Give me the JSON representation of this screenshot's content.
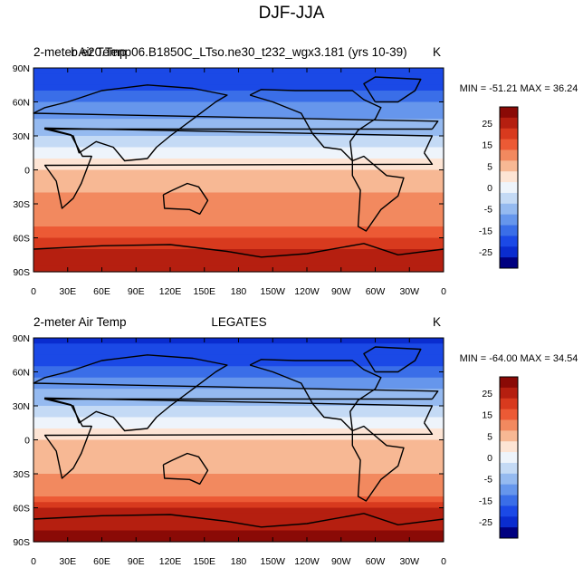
{
  "page_title": "DJF-JJA",
  "chart_data": [
    {
      "type": "heatmap",
      "left_title": "2-meter Air Temp",
      "center_title": "b.e20.Tenp06.B1850C_LTso.ne30_t232_wgx3.181 (yrs 10-39)",
      "units": "K",
      "stats_text": "MIN = -51.21 MAX =  36.24",
      "min": -51.21,
      "max": 36.24,
      "x_ticks": [
        "0",
        "30E",
        "60E",
        "90E",
        "120E",
        "150E",
        "180",
        "150W",
        "120W",
        "90W",
        "60W",
        "30W",
        "0"
      ],
      "y_ticks": [
        "90N",
        "60N",
        "30N",
        "0",
        "30S",
        "60S",
        "90S"
      ],
      "colorbar_labels": [
        "25",
        "15",
        "5",
        "0",
        "-5",
        "-15",
        "-25"
      ],
      "colorbar_levels": [
        -30,
        -25,
        -20,
        -15,
        -10,
        -5,
        -2,
        0,
        2,
        5,
        10,
        15,
        20,
        25,
        30
      ],
      "colorbar_colors": [
        "#000080",
        "#0a2ccf",
        "#1b49e6",
        "#3a6ee8",
        "#6696ec",
        "#95baf0",
        "#c4daf5",
        "#eef4fb",
        "#fde4d4",
        "#f7b894",
        "#f2895f",
        "#ec5a35",
        "#d83a1e",
        "#b51f10",
        "#8a0a06"
      ],
      "zonal_profile": [
        {
          "lat": 90,
          "anom": -24
        },
        {
          "lat": 75,
          "anom": -22
        },
        {
          "lat": 60,
          "anom": -16
        },
        {
          "lat": 45,
          "anom": -10
        },
        {
          "lat": 30,
          "anom": -5
        },
        {
          "lat": 15,
          "anom": -1
        },
        {
          "lat": 0,
          "anom": 2
        },
        {
          "lat": -15,
          "anom": 4
        },
        {
          "lat": -30,
          "anom": 6
        },
        {
          "lat": -45,
          "anom": 8
        },
        {
          "lat": -60,
          "anom": 14
        },
        {
          "lat": -75,
          "anom": 22
        },
        {
          "lat": -90,
          "anom": 24
        }
      ]
    },
    {
      "type": "heatmap",
      "left_title": "2-meter Air Temp",
      "center_title": "LEGATES",
      "units": "K",
      "stats_text": "MIN = -64.00 MAX =  34.54",
      "min": -64.0,
      "max": 34.54,
      "x_ticks": [
        "0",
        "30E",
        "60E",
        "90E",
        "120E",
        "150E",
        "180",
        "150W",
        "120W",
        "90W",
        "60W",
        "30W",
        "0"
      ],
      "y_ticks": [
        "90N",
        "60N",
        "30N",
        "0",
        "30S",
        "60S",
        "90S"
      ],
      "colorbar_labels": [
        "25",
        "15",
        "5",
        "0",
        "-5",
        "-15",
        "-25"
      ],
      "colorbar_levels": [
        -30,
        -25,
        -20,
        -15,
        -10,
        -5,
        -2,
        0,
        2,
        5,
        10,
        15,
        20,
        25,
        30
      ],
      "colorbar_colors": [
        "#000080",
        "#0a2ccf",
        "#1b49e6",
        "#3a6ee8",
        "#6696ec",
        "#95baf0",
        "#c4daf5",
        "#eef4fb",
        "#fde4d4",
        "#f7b894",
        "#f2895f",
        "#ec5a35",
        "#d83a1e",
        "#b51f10",
        "#8a0a06"
      ],
      "zonal_profile": [
        {
          "lat": 90,
          "anom": -26
        },
        {
          "lat": 75,
          "anom": -24
        },
        {
          "lat": 60,
          "anom": -18
        },
        {
          "lat": 45,
          "anom": -10
        },
        {
          "lat": 30,
          "anom": -5
        },
        {
          "lat": 15,
          "anom": -1
        },
        {
          "lat": 0,
          "anom": 2
        },
        {
          "lat": -15,
          "anom": 4
        },
        {
          "lat": -30,
          "anom": 5
        },
        {
          "lat": -45,
          "anom": 7
        },
        {
          "lat": -60,
          "anom": 20
        },
        {
          "lat": -75,
          "anom": 24
        },
        {
          "lat": -90,
          "anom": 26
        }
      ]
    }
  ]
}
